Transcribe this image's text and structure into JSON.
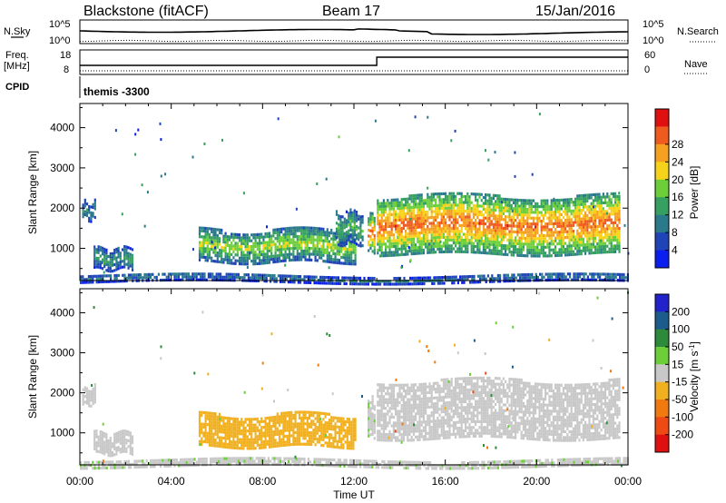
{
  "header": {
    "site": "Blackstone (fitACF)",
    "beam": "Beam 17",
    "date": "15/Jan/2016"
  },
  "nsky": {
    "left_label": "N.Sky",
    "right_label": "N.Search",
    "left_ticks": [
      "10^5",
      "10^0"
    ],
    "right_ticks": [
      "10^5",
      "10^0"
    ]
  },
  "freq": {
    "left_label_1": "Freq.",
    "left_label_2": "[MHz]",
    "right_label": "Nave",
    "left_ticks": [
      "18",
      "8"
    ],
    "right_ticks": [
      "60",
      "0"
    ]
  },
  "cpid": {
    "label": "CPID",
    "value": "themis -3300"
  },
  "time_axis": {
    "label": "Time UT",
    "ticks": [
      "00:00",
      "04:00",
      "08:00",
      "12:00",
      "16:00",
      "20:00",
      "00:00"
    ]
  },
  "chart_data": [
    {
      "type": "heatmap",
      "title": "Power",
      "ylabel": "Slant Range [km]",
      "xlabel": "Time UT",
      "yticks": [
        1000,
        2000,
        3000,
        4000
      ],
      "ylim": [
        200,
        4600
      ],
      "xlim_hours": [
        0,
        24
      ],
      "colorbar": {
        "label": "Power [dB]",
        "ticks": [
          4,
          8,
          12,
          16,
          20,
          24,
          28
        ],
        "range": [
          0,
          32
        ],
        "colors": [
          "#0a1ef0",
          "#1f44b8",
          "#2a7a8c",
          "#36a060",
          "#6ccf3a",
          "#f7d21a",
          "#f5a020",
          "#ef5a1e",
          "#e01010"
        ]
      },
      "echo_bands": [
        {
          "start_h": 0.1,
          "end_h": 0.7,
          "range_km": [
            1750,
            2150
          ],
          "power_db": 9
        },
        {
          "start_h": 0.6,
          "end_h": 2.3,
          "range_km": [
            520,
            1050
          ],
          "power_db": 10
        },
        {
          "start_h": 5.2,
          "end_h": 12.1,
          "range_km": [
            700,
            1500
          ],
          "power_db": 15
        },
        {
          "start_h": 11.2,
          "end_h": 12.4,
          "range_km": [
            1150,
            1950
          ],
          "power_db": 12
        },
        {
          "start_h": 12.6,
          "end_h": 12.9,
          "range_km": [
            950,
            1900
          ],
          "power_db": 22
        },
        {
          "start_h": 13.0,
          "end_h": 23.6,
          "range_km": [
            900,
            2350
          ],
          "power_db": 22
        },
        {
          "start_h": 0.0,
          "end_h": 24.0,
          "range_km": [
            200,
            380
          ],
          "power_db": 8
        }
      ]
    },
    {
      "type": "heatmap",
      "title": "Velocity",
      "ylabel": "Slant Range [km]",
      "xlabel": "Time UT",
      "yticks": [
        1000,
        2000,
        3000,
        4000
      ],
      "ylim": [
        200,
        4600
      ],
      "xlim_hours": [
        0,
        24
      ],
      "colorbar": {
        "label": "Velocity [m s^-1]",
        "ticks": [
          200,
          100,
          50,
          15,
          -15,
          -50,
          -100,
          -200
        ],
        "range": [
          -250,
          250
        ],
        "colors": [
          "#2222cc",
          "#1c5c8c",
          "#2d8a3a",
          "#6ccf3a",
          "#c8c8c8",
          "#f0b020",
          "#f07a10",
          "#ef4a14",
          "#e01010"
        ]
      },
      "echo_bands": [
        {
          "start_h": 0.1,
          "end_h": 0.7,
          "range_km": [
            1750,
            2150
          ],
          "velocity": 0
        },
        {
          "start_h": 0.6,
          "end_h": 2.3,
          "range_km": [
            520,
            1050
          ],
          "velocity": 0
        },
        {
          "start_h": 5.2,
          "end_h": 12.1,
          "range_km": [
            700,
            1500
          ],
          "velocity": -40
        },
        {
          "start_h": 12.6,
          "end_h": 12.9,
          "range_km": [
            950,
            1900
          ],
          "velocity": 20
        },
        {
          "start_h": 13.0,
          "end_h": 23.6,
          "range_km": [
            900,
            2350
          ],
          "velocity": 0
        },
        {
          "start_h": 0.0,
          "end_h": 24.0,
          "range_km": [
            200,
            380
          ],
          "velocity": 20
        }
      ]
    }
  ]
}
